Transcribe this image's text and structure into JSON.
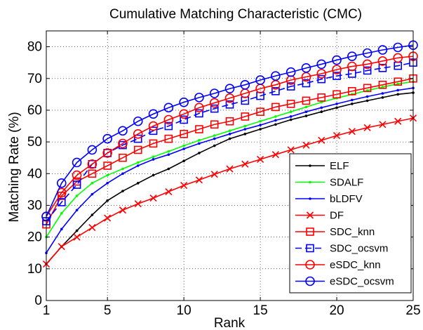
{
  "chart_data": {
    "type": "line",
    "title": "Cumulative Matching Characteristic (CMC)",
    "xlabel": "Rank",
    "ylabel": "Matching Rate (%)",
    "xlim": [
      1,
      25
    ],
    "ylim": [
      0,
      85
    ],
    "xticks": [
      1,
      5,
      10,
      15,
      20,
      25
    ],
    "yticks": [
      0,
      10,
      20,
      30,
      40,
      50,
      60,
      70,
      80
    ],
    "grid": true,
    "grid_style": "dotted",
    "legend_position": "bottom-right",
    "x": [
      1,
      2,
      3,
      4,
      5,
      6,
      7,
      8,
      9,
      10,
      11,
      12,
      13,
      14,
      15,
      16,
      17,
      18,
      19,
      20,
      21,
      22,
      23,
      24,
      25
    ],
    "series": [
      {
        "name": "ELF",
        "color": "#000000",
        "line": "solid",
        "marker": "dot",
        "values": [
          11.5,
          17.0,
          22.0,
          27.0,
          31.5,
          34.5,
          37.0,
          39.5,
          41.5,
          44.0,
          46.5,
          48.8,
          51.0,
          52.5,
          54.0,
          55.5,
          57.0,
          58.2,
          59.5,
          60.8,
          62.0,
          63.0,
          64.0,
          65.0,
          65.5
        ]
      },
      {
        "name": "SDALF",
        "color": "#00ff00",
        "line": "solid",
        "marker": "dot",
        "values": [
          20.0,
          27.5,
          33.0,
          37.0,
          39.5,
          41.5,
          43.5,
          45.3,
          47.0,
          48.8,
          50.5,
          52.0,
          53.5,
          55.0,
          56.5,
          58.0,
          59.5,
          61.0,
          62.5,
          63.8,
          65.0,
          66.2,
          67.3,
          68.3,
          69.0
        ]
      },
      {
        "name": "bLDFV",
        "color": "#0000ff",
        "line": "solid",
        "marker": "dot",
        "values": [
          15.0,
          22.5,
          28.5,
          33.5,
          37.0,
          40.0,
          42.5,
          44.5,
          46.0,
          47.8,
          49.5,
          51.0,
          52.5,
          54.0,
          55.3,
          56.8,
          58.0,
          59.5,
          60.8,
          62.0,
          63.2,
          64.3,
          65.3,
          66.3,
          67.0
        ]
      },
      {
        "name": "DF",
        "color": "#ff0000",
        "line": "solid",
        "marker": "x",
        "values": [
          11.5,
          17.0,
          20.0,
          23.0,
          26.0,
          28.5,
          30.5,
          32.3,
          34.3,
          36.3,
          38.0,
          39.8,
          41.5,
          43.0,
          44.5,
          46.0,
          47.5,
          49.0,
          50.5,
          52.0,
          53.3,
          54.5,
          55.5,
          56.5,
          57.5
        ]
      },
      {
        "name": "SDC_knn",
        "color": "#ff0000",
        "line": "solid",
        "marker": "square",
        "values": [
          24.0,
          33.0,
          37.5,
          40.0,
          42.5,
          45.0,
          47.5,
          49.5,
          51.0,
          52.5,
          54.0,
          55.5,
          56.5,
          58.0,
          59.5,
          61.0,
          62.0,
          63.0,
          64.0,
          65.0,
          66.0,
          67.0,
          68.0,
          69.0,
          70.0
        ]
      },
      {
        "name": "SDC_ocsvm",
        "color": "#0000ff",
        "line": "dashed",
        "marker": "square",
        "values": [
          25.0,
          31.0,
          36.5,
          43.0,
          46.5,
          49.0,
          51.0,
          53.5,
          55.0,
          57.0,
          59.0,
          60.5,
          61.8,
          63.0,
          64.5,
          66.0,
          67.5,
          68.5,
          69.8,
          70.8,
          71.5,
          72.5,
          73.3,
          74.0,
          75.0
        ]
      },
      {
        "name": "eSDC_knn",
        "color": "#ff0000",
        "line": "solid",
        "marker": "circle",
        "values": [
          26.5,
          34.0,
          39.5,
          43.0,
          46.5,
          49.5,
          52.5,
          55.0,
          57.0,
          58.8,
          60.8,
          62.3,
          63.8,
          65.3,
          66.8,
          68.0,
          69.5,
          70.5,
          71.5,
          72.8,
          73.8,
          74.5,
          75.5,
          76.5,
          77.0
        ]
      },
      {
        "name": "eSDC_ocsvm",
        "color": "#0000ff",
        "line": "solid",
        "marker": "circle",
        "values": [
          26.5,
          37.0,
          43.5,
          47.5,
          51.0,
          53.5,
          56.5,
          58.8,
          60.8,
          62.5,
          64.0,
          65.3,
          66.8,
          68.0,
          69.5,
          70.8,
          72.0,
          73.3,
          74.5,
          75.8,
          77.0,
          78.0,
          79.0,
          79.8,
          80.5
        ]
      }
    ]
  }
}
